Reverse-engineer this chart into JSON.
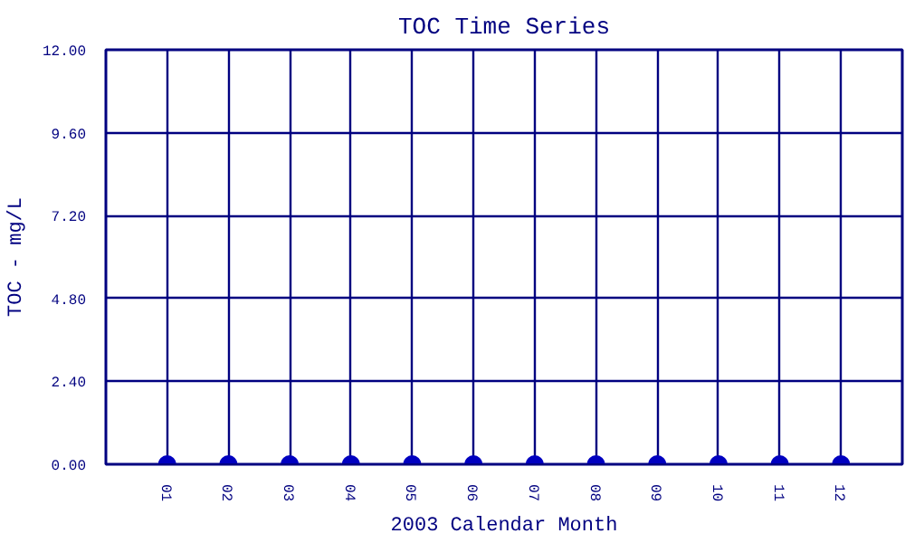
{
  "chart_data": {
    "type": "scatter",
    "title": "TOC Time Series",
    "xlabel": "2003 Calendar Month",
    "ylabel": "TOC - mg/L",
    "categories": [
      "01",
      "02",
      "03",
      "04",
      "05",
      "06",
      "07",
      "08",
      "09",
      "10",
      "11",
      "12"
    ],
    "series": [
      {
        "color": "#0000c0",
        "values": [
          0,
          0,
          0,
          0,
          0,
          0,
          0,
          0,
          0,
          0,
          0,
          0
        ]
      }
    ],
    "ylim": [
      0,
      12
    ],
    "yticks": [
      {
        "value": 0,
        "label": "0.00"
      },
      {
        "value": 2.4,
        "label": "2.40"
      },
      {
        "value": 4.8,
        "label": "4.80"
      },
      {
        "value": 7.2,
        "label": "7.20"
      },
      {
        "value": 9.6,
        "label": "9.60"
      },
      {
        "value": 12,
        "label": "12.00"
      }
    ],
    "grid": true,
    "marker": "circle"
  }
}
